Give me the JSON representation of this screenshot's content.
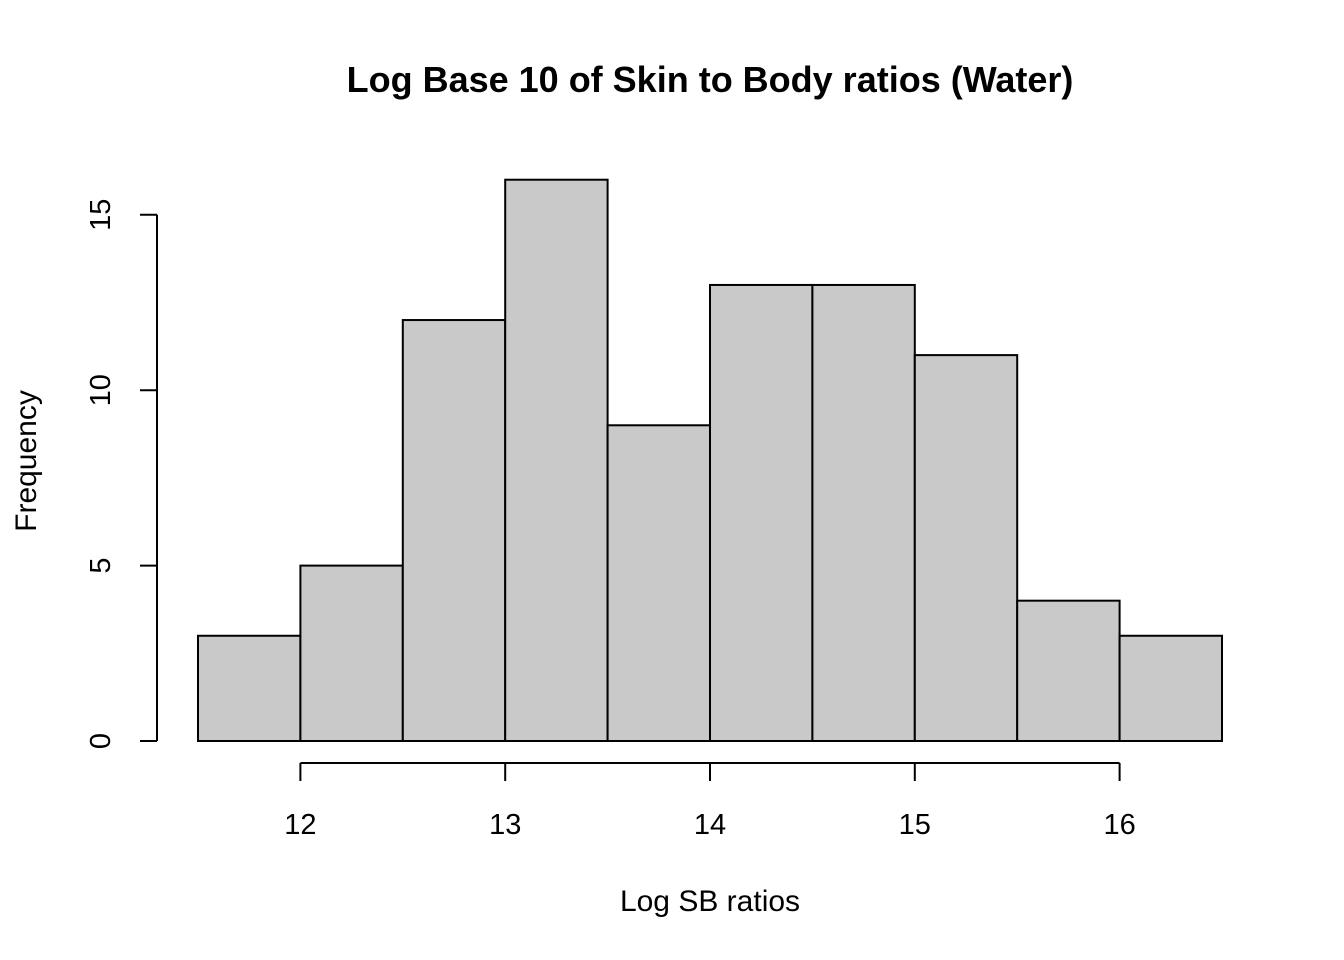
{
  "chart_data": {
    "type": "bar",
    "title": "Log Base 10 of Skin to Body ratios (Water)",
    "xlabel": "Log SB ratios",
    "ylabel": "Frequency",
    "bins": [
      {
        "start": 11.5,
        "end": 12.0,
        "count": 3
      },
      {
        "start": 12.0,
        "end": 12.5,
        "count": 5
      },
      {
        "start": 12.5,
        "end": 13.0,
        "count": 12
      },
      {
        "start": 13.0,
        "end": 13.5,
        "count": 16
      },
      {
        "start": 13.5,
        "end": 14.0,
        "count": 9
      },
      {
        "start": 14.0,
        "end": 14.5,
        "count": 13
      },
      {
        "start": 14.5,
        "end": 15.0,
        "count": 13
      },
      {
        "start": 15.0,
        "end": 15.5,
        "count": 11
      },
      {
        "start": 15.5,
        "end": 16.0,
        "count": 4
      },
      {
        "start": 16.0,
        "end": 16.5,
        "count": 3
      }
    ],
    "xlim": [
      11.5,
      16.5
    ],
    "ylim": [
      0,
      16
    ],
    "x_ticks": [
      12,
      13,
      14,
      15,
      16
    ],
    "y_ticks": [
      0,
      5,
      10,
      15
    ],
    "bar_color": "#c9c9c9",
    "grid": false,
    "legend": "none"
  }
}
